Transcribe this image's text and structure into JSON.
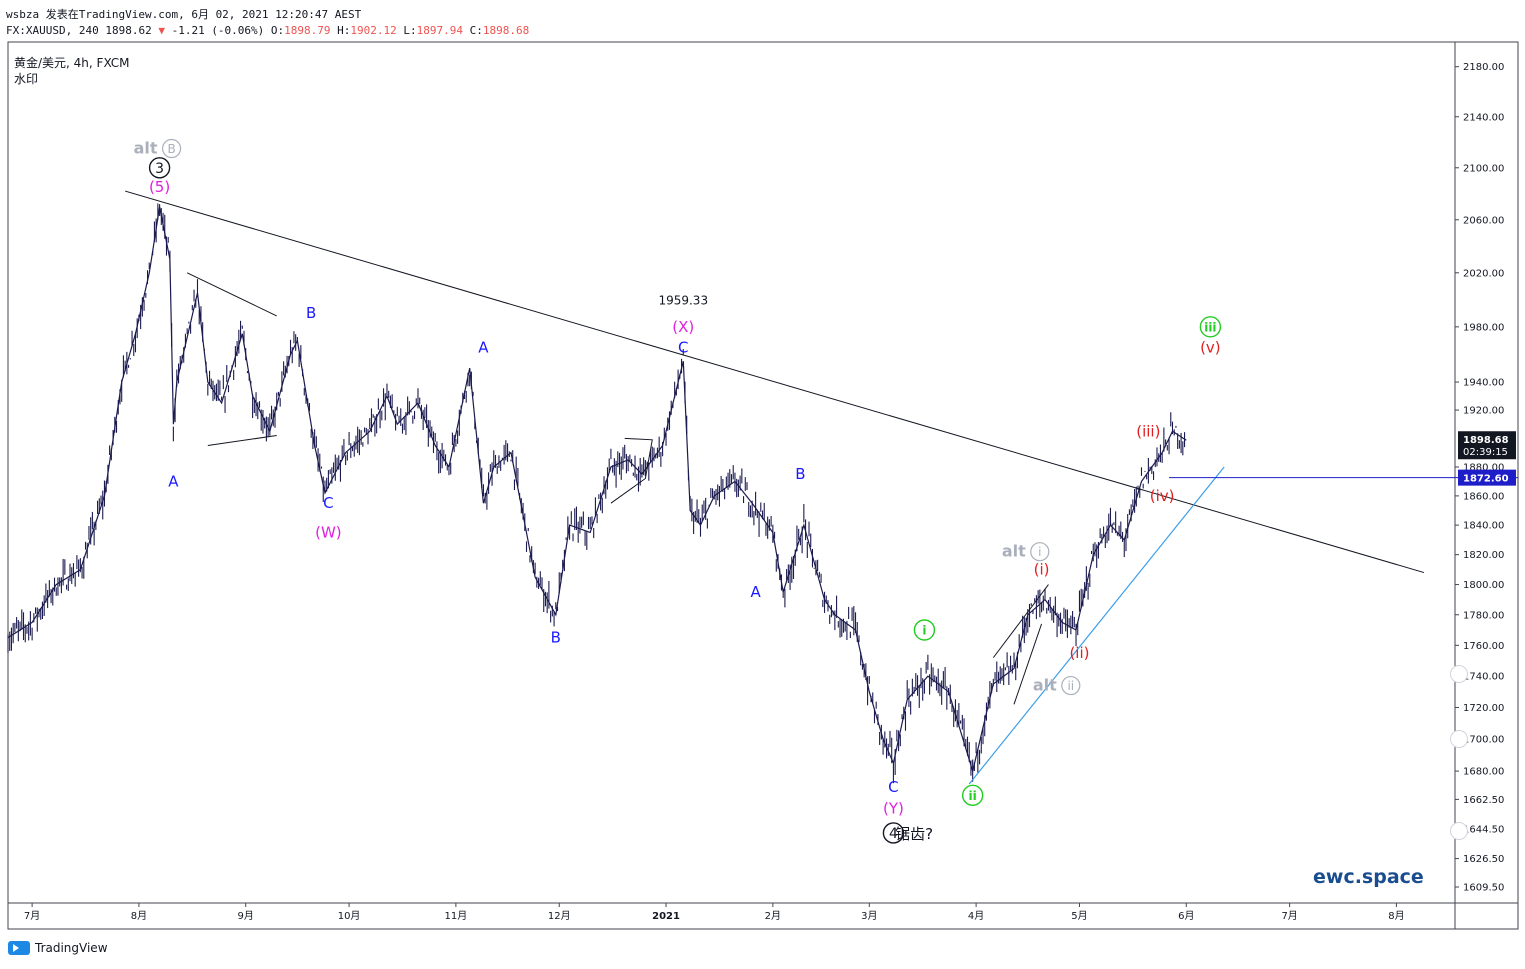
{
  "header": {
    "line1": "wsbza 发表在TradingView.com, 6月 02, 2021 12:20:47 AEST",
    "symbol_line_prefix": "FX:XAUUSD, 240 1898.62",
    "change_arrow": "▼",
    "change": "-1.21 (-0.06%)",
    "o_label": "O:",
    "o": "1898.79",
    "h_label": "H:",
    "h": "1902.12",
    "l_label": "L:",
    "l": "1897.94",
    "c_label": "C:",
    "c": "1898.68"
  },
  "symbol": {
    "title": "黄金/美元, 4h, FXCM",
    "watermark": "水印"
  },
  "brand": "ewc.space",
  "footer": {
    "tradingview": "TradingView"
  },
  "colors": {
    "candles": "#1a1a4e",
    "wave_blue": "#1a1aff",
    "wave_magenta": "#e020e0",
    "wave_red": "#e02020",
    "wave_green": "#22cc22",
    "alt_grey": "#aab0bb",
    "support_line": "#3b9ee8",
    "price_line": "#1e1ec8"
  },
  "chart_data": {
    "type": "line",
    "title": "黄金/美元, 4h, FXCM",
    "x_ticks": [
      "7月",
      "8月",
      "9月",
      "10月",
      "11月",
      "12月",
      "2021",
      "2月",
      "3月",
      "4月",
      "5月",
      "6月",
      "7月",
      "8月"
    ],
    "y_ticks": [
      "2180.00",
      "2140.00",
      "2100.00",
      "2060.00",
      "2020.00",
      "1980.00",
      "1940.00",
      "1920.00",
      "1880.00",
      "1860.00",
      "1840.00",
      "1820.00",
      "1800.00",
      "1780.00",
      "1760.00",
      "1740.00",
      "1720.00",
      "1700.00",
      "1680.00",
      "1662.50",
      "1644.50",
      "1626.50",
      "1609.50"
    ],
    "y_scale": "log",
    "ylim": [
      1600,
      2200
    ],
    "x_range": [
      "2020-06-24",
      "2021-08-18"
    ],
    "series": [
      {
        "x": [
          "2020-06-24",
          "2020-07-01",
          "2020-07-08",
          "2020-07-15",
          "2020-07-22",
          "2020-07-27",
          "2020-07-31",
          "2020-08-04",
          "2020-08-07",
          "2020-08-10",
          "2020-08-11",
          "2020-08-12",
          "2020-08-18",
          "2020-08-21",
          "2020-08-25",
          "2020-08-31",
          "2020-09-03",
          "2020-09-08",
          "2020-09-14",
          "2020-09-16",
          "2020-09-21",
          "2020-09-24",
          "2020-09-30",
          "2020-10-07",
          "2020-10-12",
          "2020-10-15",
          "2020-10-21",
          "2020-10-26",
          "2020-10-30",
          "2020-11-05",
          "2020-11-09",
          "2020-11-12",
          "2020-11-17",
          "2020-11-24",
          "2020-11-30",
          "2020-12-04",
          "2020-12-10",
          "2020-12-16",
          "2020-12-21",
          "2020-12-25",
          "2020-12-31",
          "2021-01-06",
          "2021-01-08",
          "2021-01-11",
          "2021-01-15",
          "2021-01-21",
          "2021-01-26",
          "2021-02-01",
          "2021-02-04",
          "2021-02-10",
          "2021-02-16",
          "2021-02-19",
          "2021-02-25",
          "2021-03-01",
          "2021-03-05",
          "2021-03-08",
          "2021-03-12",
          "2021-03-18",
          "2021-03-24",
          "2021-03-31",
          "2021-04-06",
          "2021-04-12",
          "2021-04-16",
          "2021-04-21",
          "2021-04-26",
          "2021-04-30",
          "2021-05-05",
          "2021-05-10",
          "2021-05-14",
          "2021-05-19",
          "2021-05-25",
          "2021-05-28",
          "2021-06-01"
        ],
        "y": [
          1765,
          1775,
          1800,
          1810,
          1860,
          1940,
          1975,
          2020,
          2070,
          2030,
          1910,
          1940,
          2005,
          1940,
          1925,
          1975,
          1930,
          1905,
          1960,
          1970,
          1895,
          1862,
          1890,
          1905,
          1930,
          1910,
          1925,
          1895,
          1880,
          1950,
          1855,
          1880,
          1890,
          1805,
          1780,
          1840,
          1835,
          1880,
          1885,
          1875,
          1895,
          1955,
          1850,
          1840,
          1860,
          1870,
          1855,
          1835,
          1795,
          1840,
          1790,
          1780,
          1770,
          1730,
          1700,
          1685,
          1725,
          1740,
          1730,
          1680,
          1735,
          1745,
          1780,
          1790,
          1775,
          1770,
          1820,
          1840,
          1830,
          1870,
          1890,
          1905,
          1898.68
        ]
      }
    ],
    "annotations": [
      {
        "text": "alt",
        "sub": "B",
        "date": "2020-08-07",
        "price": 2115
      },
      {
        "text": "3",
        "date": "2020-08-07",
        "price": 2100
      },
      {
        "text": "(5)",
        "date": "2020-08-07",
        "price": 2085
      },
      {
        "text": "A",
        "date": "2020-08-11",
        "price": 1870
      },
      {
        "text": "B",
        "date": "2020-09-20",
        "price": 1990
      },
      {
        "text": "C",
        "date": "2020-09-25",
        "price": 1855
      },
      {
        "text": "(W)",
        "date": "2020-09-25",
        "price": 1835
      },
      {
        "text": "A",
        "date": "2020-11-09",
        "price": 1965
      },
      {
        "text": "B",
        "date": "2020-11-30",
        "price": 1765
      },
      {
        "text": "1959.33",
        "date": "2021-01-06",
        "price": 2000
      },
      {
        "text": "(X)",
        "date": "2021-01-06",
        "price": 1980
      },
      {
        "text": "C",
        "date": "2021-01-06",
        "price": 1965
      },
      {
        "text": "A",
        "date": "2021-01-27",
        "price": 1795
      },
      {
        "text": "B",
        "date": "2021-02-09",
        "price": 1875
      },
      {
        "text": "C",
        "date": "2021-03-08",
        "price": 1670
      },
      {
        "text": "(Y)",
        "date": "2021-03-08",
        "price": 1657
      },
      {
        "text": "4",
        "date": "2021-03-08",
        "price": 1642
      },
      {
        "text": "锯齿?",
        "date": "2021-03-14",
        "price": 1642
      },
      {
        "text": "i",
        "date": "2021-03-17",
        "price": 1770
      },
      {
        "text": "ii",
        "date": "2021-03-31",
        "price": 1665
      },
      {
        "text": "alt",
        "sub": "i",
        "date": "2021-04-16",
        "price": 1822
      },
      {
        "text": "(i)",
        "date": "2021-04-20",
        "price": 1810
      },
      {
        "text": "(ii)",
        "date": "2021-05-01",
        "price": 1755
      },
      {
        "text": "alt",
        "sub": "ii",
        "date": "2021-04-25",
        "price": 1734
      },
      {
        "text": "(iii)",
        "date": "2021-05-21",
        "price": 1905
      },
      {
        "text": "(iv)",
        "date": "2021-05-25",
        "price": 1860
      },
      {
        "text": "iii",
        "date": "2021-06-08",
        "price": 1980
      },
      {
        "text": "(v)",
        "date": "2021-06-08",
        "price": 1965
      }
    ],
    "price_labels": {
      "last": "1898.68",
      "countdown": "02:39:15",
      "level": "1872.60"
    }
  }
}
